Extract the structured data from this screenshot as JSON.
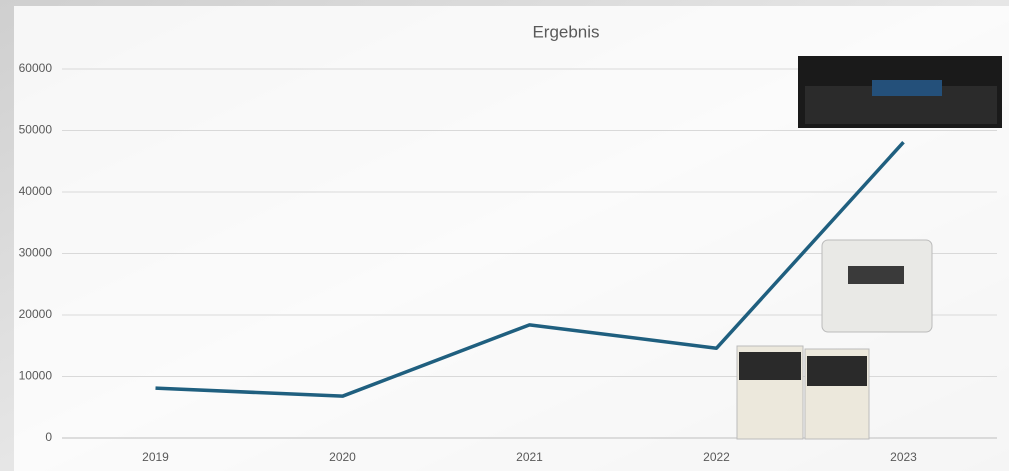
{
  "chart_data": {
    "type": "line",
    "title": "Ergebnis",
    "categories": [
      "2019",
      "2020",
      "2021",
      "2022",
      "2023"
    ],
    "series": [
      {
        "name": "Ergebnis",
        "color": "#1f5f7f",
        "values": [
          8100,
          6800,
          18400,
          14600,
          48100
        ]
      }
    ],
    "ylim": [
      0,
      60000
    ],
    "yticks": [
      0,
      10000,
      20000,
      30000,
      40000,
      50000,
      60000
    ],
    "grid": true
  }
}
